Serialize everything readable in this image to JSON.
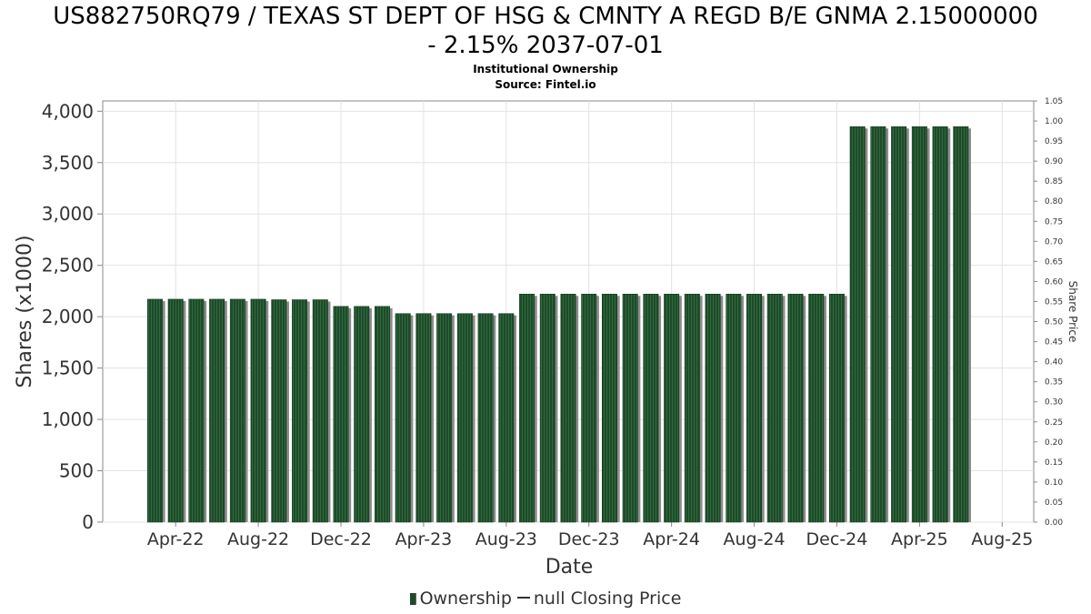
{
  "title_line1": "US882750RQ79 / TEXAS ST DEPT OF HSG & CMNTY A REGD B/E GNMA 2.15000000",
  "title_line2": "- 2.15% 2037-07-01",
  "subtitle": "Institutional Ownership",
  "source": "Source: Fintel.io",
  "legend": {
    "ownership": "Ownership",
    "closing_price": "null Closing Price"
  },
  "colors": {
    "bar_fill": "#1e4a2a",
    "bar_stripe": "#2f6b3c",
    "bar_shadow": "#8c8c8c",
    "grid": "#e2e2e2",
    "axis": "#888888"
  },
  "chart_data": {
    "type": "bar",
    "xlabel": "Date",
    "ylabel": "Shares (x1000)",
    "y2label": "Share Price",
    "ylim": [
      0,
      4100
    ],
    "y2lim": [
      0,
      1.05
    ],
    "yticks": [
      "0",
      "500",
      "1,000",
      "1,500",
      "2,000",
      "2,500",
      "3,000",
      "3,500",
      "4,000"
    ],
    "yticks_values": [
      0,
      500,
      1000,
      1500,
      2000,
      2500,
      3000,
      3500,
      4000
    ],
    "y2ticks": [
      "0.00",
      "0.05",
      "0.10",
      "0.15",
      "0.20",
      "0.25",
      "0.30",
      "0.35",
      "0.40",
      "0.45",
      "0.50",
      "0.55",
      "0.60",
      "0.65",
      "0.70",
      "0.75",
      "0.80",
      "0.85",
      "0.90",
      "0.95",
      "1.00",
      "1.05"
    ],
    "xticks": [
      "Apr-22",
      "Aug-22",
      "Dec-22",
      "Apr-23",
      "Aug-23",
      "Dec-23",
      "Apr-24",
      "Aug-24",
      "Dec-24",
      "Apr-25",
      "Aug-25"
    ],
    "x_start": "2022-01",
    "x_end": "2025-09",
    "grid": true,
    "legend_position": "bottom",
    "series": [
      {
        "name": "Ownership",
        "dates": [
          "2022-03",
          "2022-04",
          "2022-05",
          "2022-06",
          "2022-07",
          "2022-08",
          "2022-09",
          "2022-10",
          "2022-11",
          "2022-12",
          "2023-01",
          "2023-02",
          "2023-03",
          "2023-04",
          "2023-05",
          "2023-06",
          "2023-07",
          "2023-08",
          "2023-09",
          "2023-10",
          "2023-11",
          "2023-12",
          "2024-01",
          "2024-02",
          "2024-03",
          "2024-04",
          "2024-05",
          "2024-06",
          "2024-07",
          "2024-08",
          "2024-09",
          "2024-10",
          "2024-11",
          "2024-12",
          "2025-01",
          "2025-02",
          "2025-03",
          "2025-04",
          "2025-05",
          "2025-06"
        ],
        "values": [
          2170,
          2170,
          2170,
          2170,
          2170,
          2170,
          2165,
          2165,
          2165,
          2100,
          2100,
          2100,
          2030,
          2030,
          2030,
          2030,
          2030,
          2030,
          2220,
          2220,
          2220,
          2220,
          2220,
          2220,
          2220,
          2220,
          2220,
          2220,
          2220,
          2220,
          2220,
          2220,
          2220,
          2220,
          3850,
          3850,
          3850,
          3850,
          3850,
          3850
        ]
      },
      {
        "name": "null Closing Price",
        "values": []
      }
    ]
  }
}
